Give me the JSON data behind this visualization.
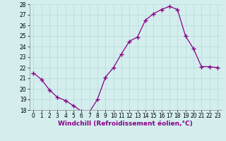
{
  "x": [
    0,
    1,
    2,
    3,
    4,
    5,
    6,
    7,
    8,
    9,
    10,
    11,
    12,
    13,
    14,
    15,
    16,
    17,
    18,
    19,
    20,
    21,
    22,
    23
  ],
  "y": [
    21.5,
    20.9,
    19.9,
    19.2,
    18.9,
    18.4,
    17.9,
    17.8,
    19.0,
    21.1,
    22.0,
    23.3,
    24.5,
    24.9,
    26.5,
    27.1,
    27.5,
    27.8,
    27.5,
    25.0,
    23.8,
    22.1,
    22.1,
    22.0
  ],
  "line_color": "#880088",
  "marker": "+",
  "marker_size": 4,
  "marker_linewidth": 1.0,
  "line_width": 0.9,
  "xlabel": "Windchill (Refroidissement éolien,°C)",
  "xlabel_fontsize": 6.5,
  "xlabel_color": "#880088",
  "ylim": [
    18,
    28
  ],
  "xlim": [
    -0.5,
    23.5
  ],
  "yticks": [
    18,
    19,
    20,
    21,
    22,
    23,
    24,
    25,
    26,
    27,
    28
  ],
  "xticks": [
    0,
    1,
    2,
    3,
    4,
    5,
    6,
    7,
    8,
    9,
    10,
    11,
    12,
    13,
    14,
    15,
    16,
    17,
    18,
    19,
    20,
    21,
    22,
    23
  ],
  "tick_fontsize": 5.5,
  "background_color": "#d4eeee",
  "grid_color": "#bbdddd",
  "grid_linewidth": 0.6,
  "figure_background": "#d4eeee",
  "spine_color": "#888888"
}
